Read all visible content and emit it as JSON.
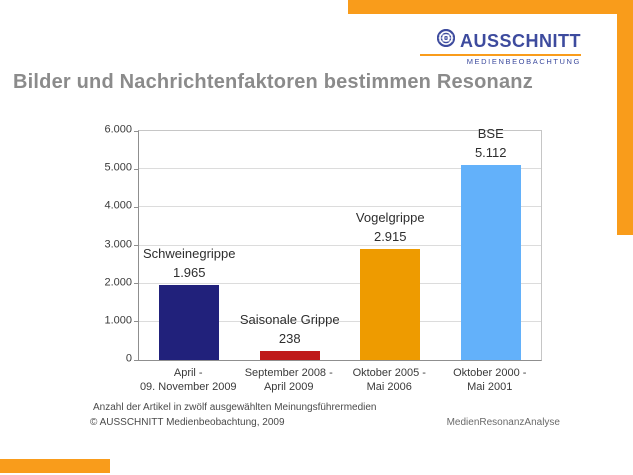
{
  "colors": {
    "accent_orange": "#F99C1B",
    "logo_blue": "#3D4B9E",
    "title_gray": "#8B8B8B",
    "bar_navy": "#21217B",
    "bar_red": "#BF1A1A",
    "bar_orange": "#EE9B00",
    "bar_lightblue": "#63B1FA"
  },
  "logo": {
    "name": "AUSSCHNITT",
    "subtitle": "MEDIENBEOBACHTUNG"
  },
  "title": "Bilder und Nachrichtenfaktoren bestimmen Resonanz",
  "chart_data": {
    "type": "bar",
    "title": "",
    "xlabel": "",
    "ylabel": "",
    "ylim": [
      0,
      6000
    ],
    "y_tick_step": 1000,
    "y_tick_labels": [
      "0",
      "1.000",
      "2.000",
      "3.000",
      "4.000",
      "5.000",
      "6.000"
    ],
    "grid": true,
    "legend": "none",
    "categories": [
      "April - 09. November 2009",
      "September 2008 - April 2009",
      "Oktober 2005 - Mai 2006",
      "Oktober 2000 - Mai 2001"
    ],
    "values": [
      1965,
      238,
      2915,
      5112
    ],
    "bars": [
      {
        "name": "Schweinegrippe",
        "value": 1965,
        "value_label": "1.965",
        "category_line1": "April -",
        "category_line2": "09. November 2009",
        "color": "#21217B"
      },
      {
        "name": "Saisonale Grippe",
        "value": 238,
        "value_label": "238",
        "category_line1": "September 2008 -",
        "category_line2": "April 2009",
        "color": "#BF1A1A"
      },
      {
        "name": "Vogelgrippe",
        "value": 2915,
        "value_label": "2.915",
        "category_line1": "Oktober 2005 -",
        "category_line2": "Mai 2006",
        "color": "#EE9B00"
      },
      {
        "name": "BSE",
        "value": 5112,
        "value_label": "5.112",
        "category_line1": "Oktober 2000 -",
        "category_line2": "Mai 2001",
        "color": "#63B1FA"
      }
    ]
  },
  "footer": {
    "note": "Anzahl der Artikel in zwölf ausgewählten Meinungsführermedien",
    "copyright": "© AUSSCHNITT Medienbeobachtung, 2009",
    "product": "MedienResonanzAnalyse"
  }
}
